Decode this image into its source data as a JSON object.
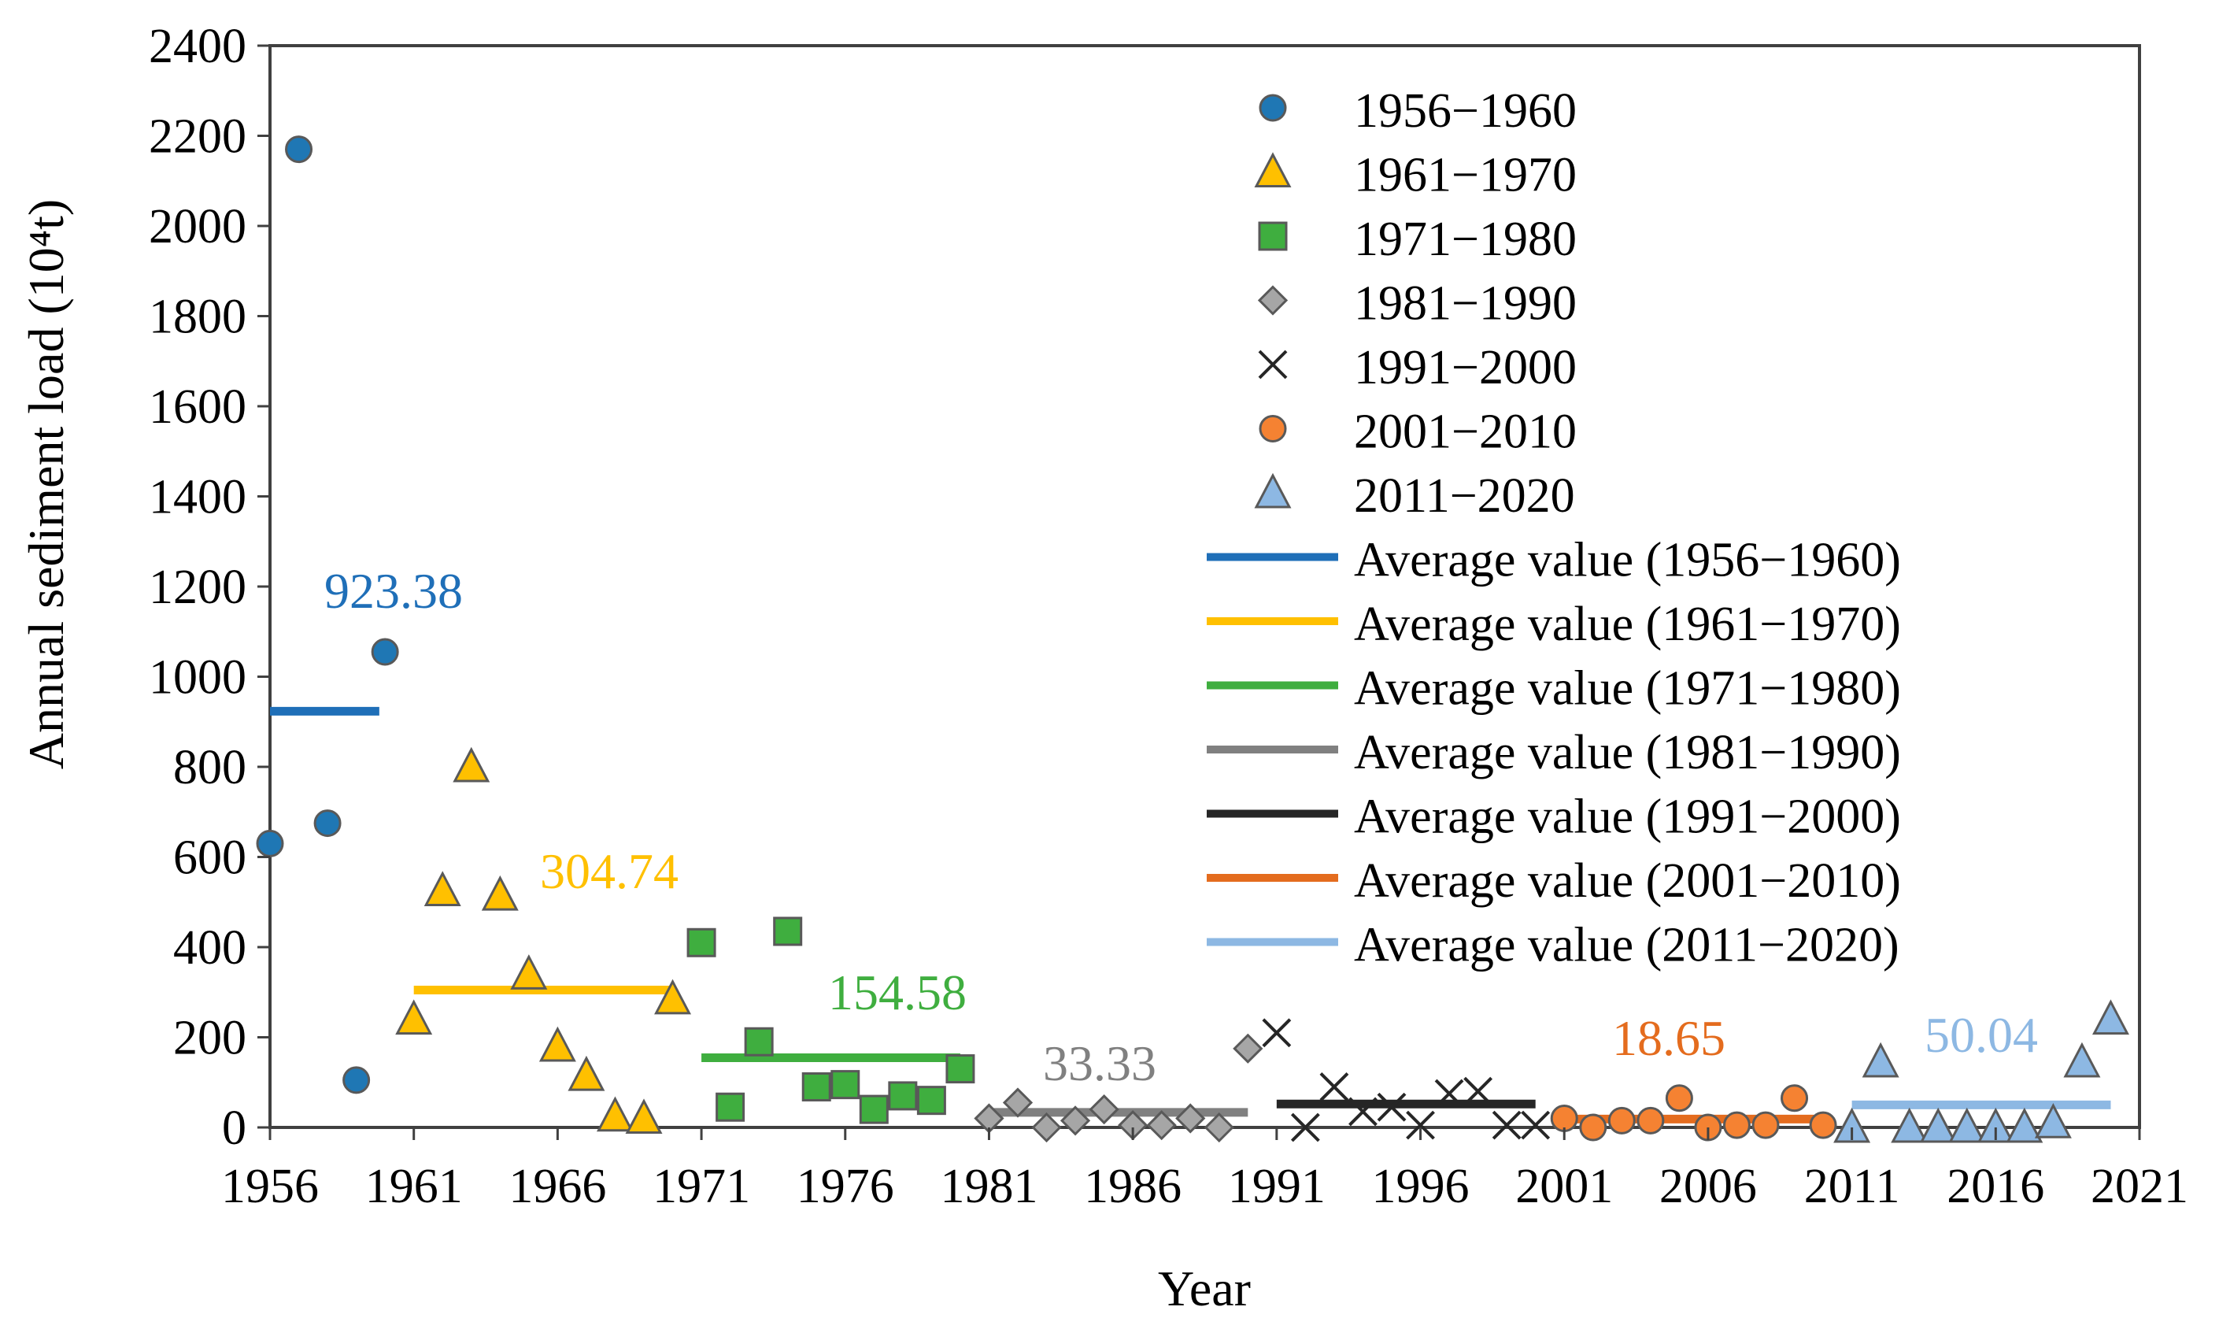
{
  "chart_data": {
    "type": "scatter",
    "xlabel": "Year",
    "ylabel": "Annual sediment load (10⁴t)",
    "xlim": [
      1956,
      2021
    ],
    "ylim": [
      0,
      2400
    ],
    "xticks": [
      1956,
      1961,
      1966,
      1971,
      1976,
      1981,
      1986,
      1991,
      1996,
      2001,
      2006,
      2011,
      2016,
      2021
    ],
    "yticks": [
      0,
      200,
      400,
      600,
      800,
      1000,
      1200,
      1400,
      1600,
      1800,
      2000,
      2200,
      2400
    ],
    "grid": false,
    "legend_position": "top-right",
    "series": [
      {
        "name": "1956−1960",
        "marker": "circle",
        "color": "#1F77B4",
        "x": [
          1956,
          1957,
          1958,
          1959,
          1960
        ],
        "y": [
          630,
          2170,
          675,
          105,
          1055
        ]
      },
      {
        "name": "1961−1970",
        "marker": "triangle",
        "color": "#FFC000",
        "x": [
          1961,
          1962,
          1963,
          1964,
          1965,
          1966,
          1967,
          1968,
          1969,
          1970
        ],
        "y": [
          240,
          525,
          800,
          515,
          340,
          180,
          115,
          25,
          20,
          285
        ]
      },
      {
        "name": "1971−1980",
        "marker": "square",
        "color": "#3FAE3F",
        "x": [
          1971,
          1972,
          1973,
          1974,
          1975,
          1976,
          1977,
          1978,
          1979,
          1980
        ],
        "y": [
          410,
          45,
          190,
          435,
          90,
          95,
          40,
          70,
          60,
          130
        ]
      },
      {
        "name": "1981−1990",
        "marker": "diamond",
        "color": "#A6A6A6",
        "x": [
          1981,
          1982,
          1983,
          1984,
          1985,
          1986,
          1987,
          1988,
          1989,
          1990
        ],
        "y": [
          20,
          55,
          0,
          15,
          40,
          5,
          5,
          20,
          0,
          175
        ]
      },
      {
        "name": "1991−2000",
        "marker": "cross",
        "color": "#262626",
        "x": [
          1991,
          1992,
          1993,
          1994,
          1995,
          1996,
          1997,
          1998,
          1999,
          2000
        ],
        "y": [
          210,
          0,
          90,
          35,
          45,
          5,
          75,
          80,
          5,
          5
        ]
      },
      {
        "name": "2001−2010",
        "marker": "circle",
        "color": "#F58232",
        "x": [
          2001,
          2002,
          2003,
          2004,
          2005,
          2006,
          2007,
          2008,
          2009,
          2010
        ],
        "y": [
          20,
          0,
          15,
          15,
          65,
          0,
          5,
          5,
          65,
          5
        ]
      },
      {
        "name": "2011−2020",
        "marker": "triangle",
        "color": "#8DB8E3",
        "x": [
          2011,
          2012,
          2013,
          2014,
          2015,
          2016,
          2017,
          2018,
          2019,
          2020
        ],
        "y": [
          0,
          145,
          0,
          0,
          0,
          0,
          0,
          10,
          145,
          240
        ]
      }
    ],
    "averages": [
      {
        "name": "Average value (1956−1960)",
        "value": 923.38,
        "label": "923.38",
        "x_start": 1956,
        "x_end": 1959.8,
        "color": "#1F6FB8"
      },
      {
        "name": "Average value (1961−1970)",
        "value": 304.74,
        "label": "304.74",
        "x_start": 1961,
        "x_end": 1970,
        "color": "#FFC000"
      },
      {
        "name": "Average value (1971−1980)",
        "value": 154.58,
        "label": "154.58",
        "x_start": 1971,
        "x_end": 1980,
        "color": "#3FAE3F"
      },
      {
        "name": "Average value (1981−1990)",
        "value": 33.33,
        "label": "33.33",
        "x_start": 1981,
        "x_end": 1990,
        "color": "#808080"
      },
      {
        "name": "Average value (1991−2000)",
        "value": 52,
        "label": "",
        "x_start": 1991,
        "x_end": 2000,
        "color": "#262626"
      },
      {
        "name": "Average value (2001−2010)",
        "value": 18.65,
        "label": "18.65",
        "x_start": 2001,
        "x_end": 2010,
        "color": "#E46C1E"
      },
      {
        "name": "Average value (2011−2020)",
        "value": 50.04,
        "label": "50.04",
        "x_start": 2011,
        "x_end": 2020,
        "color": "#8DB8E3"
      }
    ]
  }
}
